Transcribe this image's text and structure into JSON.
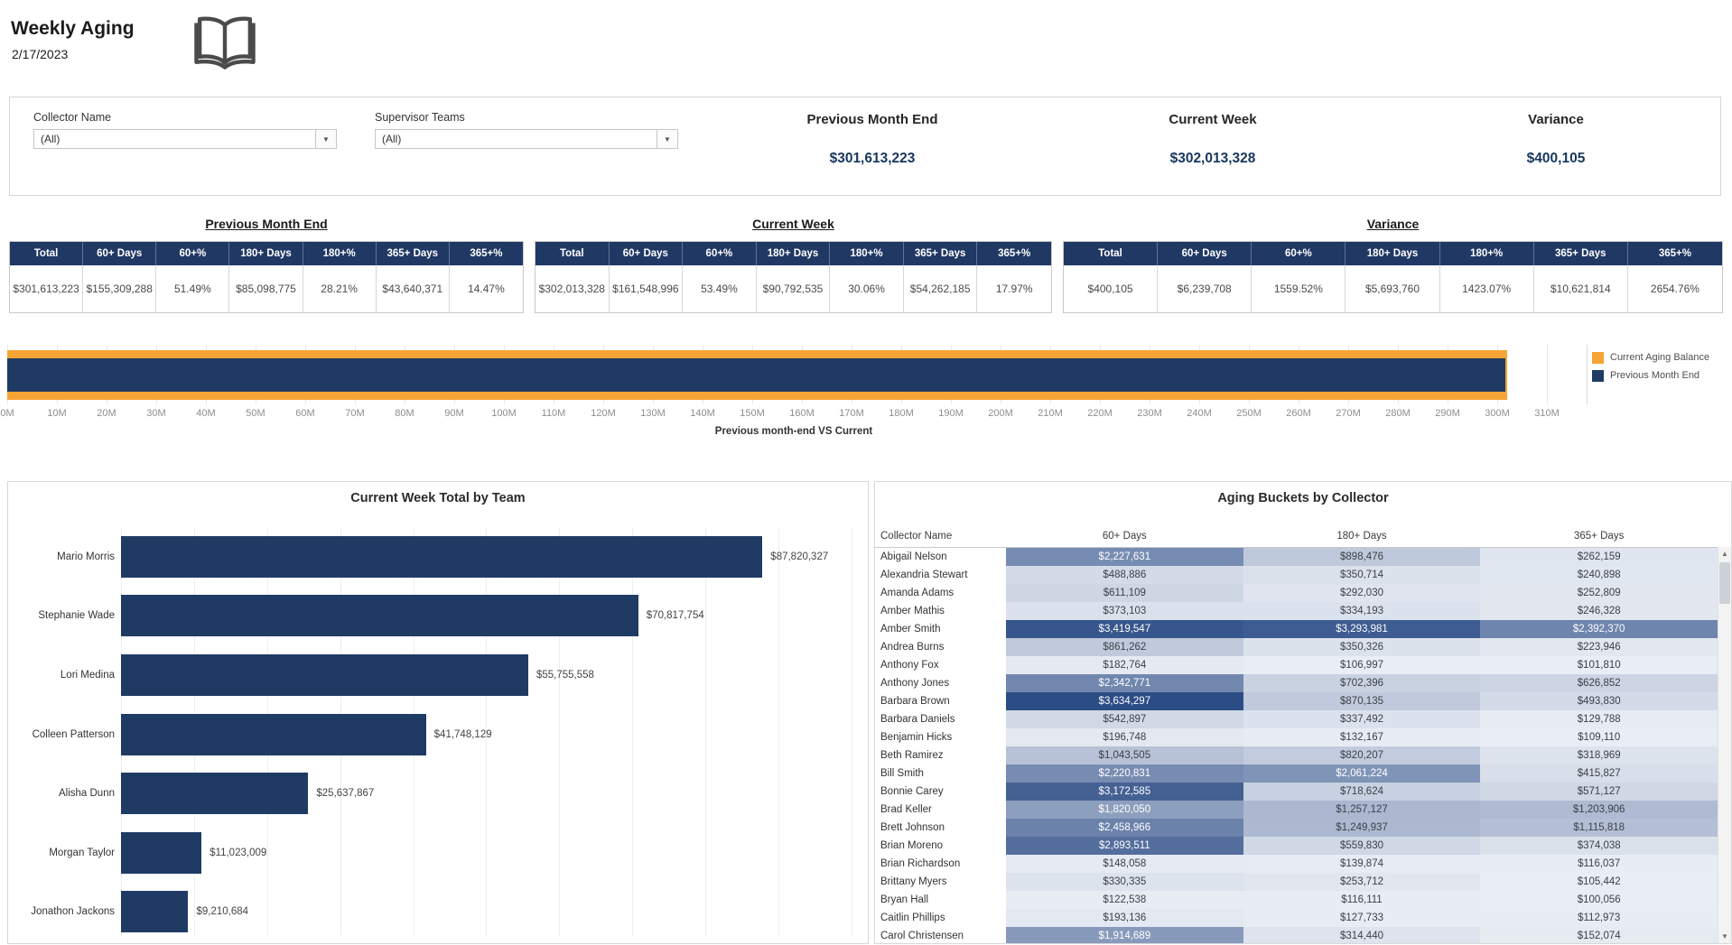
{
  "header": {
    "title": "Weekly Aging",
    "date": "2/17/2023"
  },
  "filters": [
    {
      "label": "Collector Name",
      "value": "(All)"
    },
    {
      "label": "Supervisor Teams",
      "value": "(All)"
    }
  ],
  "kpis": [
    {
      "label": "Previous Month End",
      "value": "$301,613,223"
    },
    {
      "label": "Current Week",
      "value": "$302,013,328"
    },
    {
      "label": "Variance",
      "value": "$400,105"
    }
  ],
  "summary_columns": [
    "Total",
    "60+ Days",
    "60+%",
    "180+ Days",
    "180+%",
    "365+ Days",
    "365+%"
  ],
  "summary_tables": [
    {
      "title": "Previous Month End",
      "values": [
        "$301,613,223",
        "$155,309,288",
        "51.49%",
        "$85,098,775",
        "28.21%",
        "$43,640,371",
        "14.47%"
      ]
    },
    {
      "title": "Current Week",
      "values": [
        "$302,013,328",
        "$161,548,996",
        "53.49%",
        "$90,792,535",
        "30.06%",
        "$54,262,185",
        "17.97%"
      ]
    },
    {
      "title": "Variance",
      "values": [
        "$400,105",
        "$6,239,708",
        "1559.52%",
        "$5,693,760",
        "1423.07%",
        "$10,621,814",
        "2654.76%"
      ]
    }
  ],
  "colors": {
    "navy": "#1f3b63",
    "orange": "#f6a433",
    "header_bg": "#203864"
  },
  "chart_data": [
    {
      "id": "comparison",
      "type": "bar",
      "orientation": "horizontal",
      "title": "Previous month-end VS Current",
      "series": [
        {
          "name": "Current Aging Balance",
          "color": "#f6a433",
          "value": 302013328
        },
        {
          "name": "Previous Month End",
          "color": "#1f3b63",
          "value": 301613223
        }
      ],
      "xlim": [
        0,
        310000000
      ],
      "tick_step": 10000000,
      "tick_suffix": "M",
      "grid": true,
      "legend_position": "right"
    },
    {
      "id": "team",
      "type": "bar",
      "orientation": "horizontal",
      "title": "Current Week Total by Team",
      "categories": [
        "Mario Morris",
        "Stephanie Wade",
        "Lori Medina",
        "Colleen Patterson",
        "Alisha Dunn",
        "Morgan Taylor",
        "Jonathon Jackons"
      ],
      "values": [
        87820327,
        70817754,
        55755558,
        41748129,
        25637867,
        11023009,
        9210684
      ],
      "bar_color": "#1f3b63",
      "xlim": [
        0,
        102000000
      ],
      "grid": true,
      "data_labels": "currency"
    },
    {
      "id": "aging",
      "type": "heatmap",
      "title": "Aging Buckets by Collector",
      "columns": [
        "Collector Name",
        "60+ Days",
        "180+ Days",
        "365+ Days"
      ],
      "rows": [
        {
          "name": "Abigail Nelson",
          "values": [
            2227631,
            898476,
            262159
          ]
        },
        {
          "name": "Alexandria Stewart",
          "values": [
            488886,
            350714,
            240898
          ]
        },
        {
          "name": "Amanda Adams",
          "values": [
            611109,
            292030,
            252809
          ]
        },
        {
          "name": "Amber Mathis",
          "values": [
            373103,
            334193,
            246328
          ]
        },
        {
          "name": "Amber Smith",
          "values": [
            3419547,
            3293981,
            2392370
          ]
        },
        {
          "name": "Andrea Burns",
          "values": [
            861262,
            350326,
            223946
          ]
        },
        {
          "name": "Anthony Fox",
          "values": [
            182764,
            106997,
            101810
          ]
        },
        {
          "name": "Anthony Jones",
          "values": [
            2342771,
            702396,
            626852
          ]
        },
        {
          "name": "Barbara Brown",
          "values": [
            3634297,
            870135,
            493830
          ]
        },
        {
          "name": "Barbara Daniels",
          "values": [
            542897,
            337492,
            129788
          ]
        },
        {
          "name": "Benjamin Hicks",
          "values": [
            196748,
            132167,
            109110
          ]
        },
        {
          "name": "Beth Ramirez",
          "values": [
            1043505,
            820207,
            318969
          ]
        },
        {
          "name": "Bill Smith",
          "values": [
            2220831,
            2061224,
            415827
          ]
        },
        {
          "name": "Bonnie Carey",
          "values": [
            3172585,
            718624,
            571127
          ]
        },
        {
          "name": "Brad Keller",
          "values": [
            1820050,
            1257127,
            1203906
          ]
        },
        {
          "name": "Brett Johnson",
          "values": [
            2458966,
            1249937,
            1115818
          ]
        },
        {
          "name": "Brian Moreno",
          "values": [
            2893511,
            559830,
            374038
          ]
        },
        {
          "name": "Brian Richardson",
          "values": [
            148058,
            139874,
            116037
          ]
        },
        {
          "name": "Brittany Myers",
          "values": [
            330335,
            253712,
            105442
          ]
        },
        {
          "name": "Bryan Hall",
          "values": [
            122538,
            116111,
            100056
          ]
        },
        {
          "name": "Caitlin Phillips",
          "values": [
            193136,
            127733,
            112973
          ]
        },
        {
          "name": "Carol Christensen",
          "values": [
            1914689,
            314440,
            152074
          ]
        }
      ],
      "color_scale": {
        "min_color": "#e9edf4",
        "max_color": "#2c4c86",
        "domain": [
          100056,
          3634297
        ]
      }
    }
  ]
}
